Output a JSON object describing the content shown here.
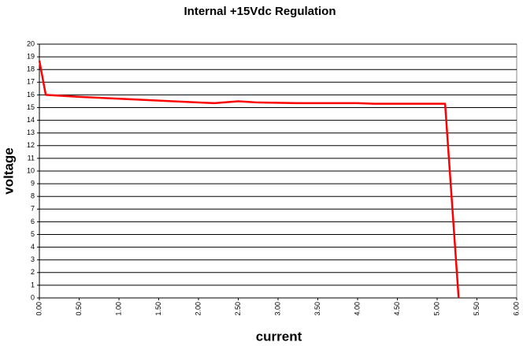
{
  "chart_data": {
    "type": "line",
    "title": "Internal +15Vdc Regulation",
    "x_label": "current",
    "y_label": "voltage",
    "x": [
      0,
      0.08,
      0.5,
      1.0,
      1.5,
      2.0,
      2.2,
      2.5,
      2.75,
      3.25,
      4.0,
      4.2,
      5.1,
      5.27
    ],
    "series": [
      {
        "name": "voltage",
        "color": "#ff0000",
        "values": [
          18.7,
          16.0,
          15.85,
          15.7,
          15.55,
          15.4,
          15.35,
          15.5,
          15.4,
          15.35,
          15.35,
          15.3,
          15.3,
          0
        ]
      }
    ],
    "xlim": [
      0,
      6
    ],
    "ylim": [
      0,
      20
    ],
    "xticks": [
      {
        "value": 0,
        "label": "0.00"
      },
      {
        "value": 0.5,
        "label": "0.50"
      },
      {
        "value": 1,
        "label": "1.00"
      },
      {
        "value": 1.5,
        "label": "1.50"
      },
      {
        "value": 2,
        "label": "2.00"
      },
      {
        "value": 2.5,
        "label": "2.50"
      },
      {
        "value": 3,
        "label": "3.00"
      },
      {
        "value": 3.5,
        "label": "3.50"
      },
      {
        "value": 4,
        "label": "4.00"
      },
      {
        "value": 4.5,
        "label": "4.50"
      },
      {
        "value": 5,
        "label": "5.00"
      },
      {
        "value": 5.5,
        "label": "5.50"
      },
      {
        "value": 6,
        "label": "6.00"
      }
    ],
    "yticks": [
      0,
      1,
      2,
      3,
      4,
      5,
      6,
      7,
      8,
      9,
      10,
      11,
      12,
      13,
      14,
      15,
      16,
      17,
      18,
      19,
      20
    ],
    "grid": true
  }
}
